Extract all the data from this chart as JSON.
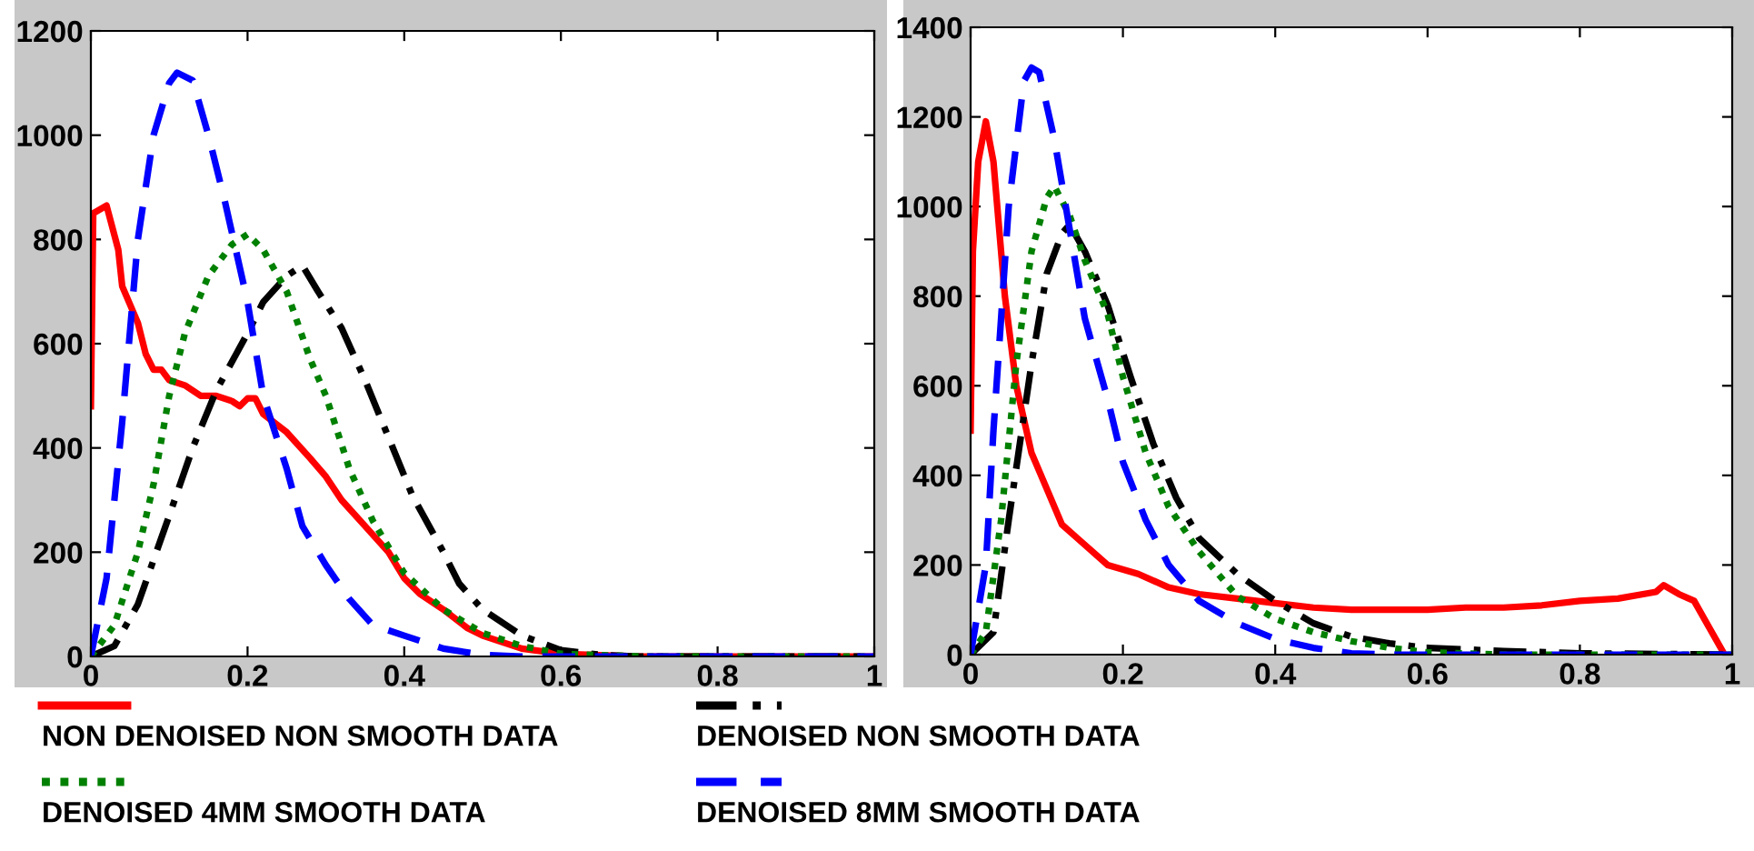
{
  "chart_data": [
    {
      "type": "line",
      "xlim": [
        0,
        1
      ],
      "ylim": [
        0,
        1200
      ],
      "xticks": [
        0,
        {
          "value": 0.2,
          "label": "0.2"
        },
        {
          "value": 0.4,
          "label": "0.4"
        },
        {
          "value": 0.6,
          "label": "0.6"
        },
        {
          "value": 0.8,
          "label": "0.8"
        },
        1
      ],
      "yticks": [
        0,
        200,
        400,
        600,
        800,
        1000,
        1200
      ],
      "grid": false,
      "legend": "bottom",
      "series": [
        {
          "name": "NON DENOISED NON SMOOTH DATA",
          "color": "#ff0000",
          "line_style": "solid",
          "x": [
            0,
            0.003,
            0.02,
            0.035,
            0.04,
            0.06,
            0.07,
            0.08,
            0.09,
            0.1,
            0.12,
            0.14,
            0.16,
            0.18,
            0.19,
            0.2,
            0.21,
            0.22,
            0.25,
            0.28,
            0.3,
            0.32,
            0.35,
            0.38,
            0.4,
            0.42,
            0.45,
            0.48,
            0.5,
            0.55,
            0.6,
            0.7,
            1
          ],
          "values": [
            480,
            850,
            865,
            780,
            710,
            640,
            580,
            550,
            550,
            530,
            520,
            500,
            500,
            490,
            480,
            495,
            495,
            465,
            430,
            380,
            345,
            300,
            250,
            200,
            150,
            120,
            90,
            55,
            40,
            15,
            5,
            0,
            0
          ]
        },
        {
          "name": "DENOISED NON SMOOTH DATA",
          "color": "#000000",
          "line_style": "dashdot",
          "x": [
            0,
            0.03,
            0.06,
            0.1,
            0.13,
            0.16,
            0.2,
            0.22,
            0.25,
            0.27,
            0.29,
            0.32,
            0.35,
            0.38,
            0.41,
            0.45,
            0.47,
            0.5,
            0.55,
            0.6,
            0.65,
            0.7,
            1
          ],
          "values": [
            0,
            20,
            100,
            270,
            400,
            510,
            620,
            680,
            730,
            750,
            700,
            630,
            530,
            420,
            310,
            200,
            140,
            90,
            40,
            12,
            3,
            0,
            0
          ]
        },
        {
          "name": "DENOISED 4MM SMOOTH DATA",
          "color": "#008000",
          "line_style": "dotted",
          "x": [
            0,
            0.03,
            0.06,
            0.08,
            0.1,
            0.12,
            0.15,
            0.18,
            0.2,
            0.22,
            0.25,
            0.28,
            0.3,
            0.33,
            0.36,
            0.4,
            0.45,
            0.5,
            0.55,
            0.6,
            0.7,
            1
          ],
          "values": [
            0,
            60,
            200,
            330,
            500,
            620,
            730,
            790,
            810,
            780,
            700,
            570,
            500,
            360,
            260,
            160,
            90,
            45,
            20,
            5,
            0,
            0
          ]
        },
        {
          "name": "DENOISED 8MM SMOOTH DATA",
          "color": "#0000ff",
          "line_style": "dashed",
          "x": [
            0,
            0.02,
            0.04,
            0.06,
            0.08,
            0.1,
            0.11,
            0.13,
            0.15,
            0.17,
            0.2,
            0.22,
            0.25,
            0.27,
            0.3,
            0.33,
            0.36,
            0.4,
            0.45,
            0.5,
            0.55,
            1
          ],
          "values": [
            0,
            150,
            450,
            800,
            1000,
            1100,
            1120,
            1105,
            1000,
            880,
            680,
            500,
            360,
            250,
            175,
            110,
            60,
            40,
            15,
            3,
            0,
            0
          ]
        }
      ]
    },
    {
      "type": "line",
      "xlim": [
        0,
        1
      ],
      "ylim": [
        0,
        1400
      ],
      "xticks": [
        0,
        {
          "value": 0.2,
          "label": "0.2"
        },
        {
          "value": 0.4,
          "label": "0.4"
        },
        {
          "value": 0.6,
          "label": "0.6"
        },
        {
          "value": 0.8,
          "label": "0.8"
        },
        1
      ],
      "yticks": [
        0,
        200,
        400,
        600,
        800,
        1000,
        1200,
        1400
      ],
      "grid": false,
      "series": [
        {
          "color": "#ff0000",
          "line_style": "solid",
          "x": [
            0,
            0.003,
            0.01,
            0.02,
            0.03,
            0.045,
            0.06,
            0.08,
            0.1,
            0.12,
            0.14,
            0.18,
            0.22,
            0.26,
            0.3,
            0.35,
            0.4,
            0.45,
            0.5,
            0.6,
            0.65,
            0.7,
            0.75,
            0.8,
            0.85,
            0.9,
            0.91,
            0.93,
            0.95,
            0.97,
            0.99
          ],
          "values": [
            500,
            900,
            1100,
            1190,
            1100,
            800,
            600,
            450,
            370,
            290,
            260,
            200,
            180,
            150,
            135,
            125,
            115,
            105,
            100,
            100,
            105,
            105,
            110,
            120,
            125,
            140,
            155,
            135,
            120,
            60,
            0
          ]
        },
        {
          "color": "#000000",
          "line_style": "dashdot",
          "x": [
            0,
            0.03,
            0.05,
            0.08,
            0.1,
            0.12,
            0.13,
            0.15,
            0.18,
            0.21,
            0.24,
            0.27,
            0.3,
            0.35,
            0.4,
            0.45,
            0.5,
            0.55,
            0.6,
            0.7,
            0.8,
            1
          ],
          "values": [
            0,
            50,
            300,
            650,
            850,
            940,
            960,
            900,
            780,
            620,
            470,
            350,
            260,
            180,
            120,
            70,
            40,
            25,
            15,
            8,
            3,
            0
          ]
        },
        {
          "color": "#008000",
          "line_style": "dotted",
          "x": [
            0,
            0.02,
            0.04,
            0.06,
            0.08,
            0.1,
            0.11,
            0.13,
            0.15,
            0.18,
            0.2,
            0.23,
            0.26,
            0.3,
            0.35,
            0.4,
            0.45,
            0.5,
            0.55,
            0.6,
            0.7,
            1
          ],
          "values": [
            0,
            50,
            300,
            650,
            900,
            1020,
            1045,
            980,
            880,
            760,
            620,
            450,
            330,
            230,
            130,
            80,
            50,
            30,
            15,
            5,
            0,
            0
          ]
        },
        {
          "color": "#0000ff",
          "line_style": "dashed",
          "x": [
            0,
            0.02,
            0.03,
            0.05,
            0.07,
            0.08,
            0.09,
            0.11,
            0.13,
            0.15,
            0.18,
            0.2,
            0.23,
            0.26,
            0.3,
            0.35,
            0.4,
            0.45,
            0.5,
            0.55,
            1
          ],
          "values": [
            0,
            200,
            500,
            1000,
            1280,
            1310,
            1300,
            1150,
            950,
            750,
            570,
            430,
            300,
            200,
            120,
            70,
            35,
            15,
            3,
            0,
            0
          ]
        }
      ]
    }
  ]
}
